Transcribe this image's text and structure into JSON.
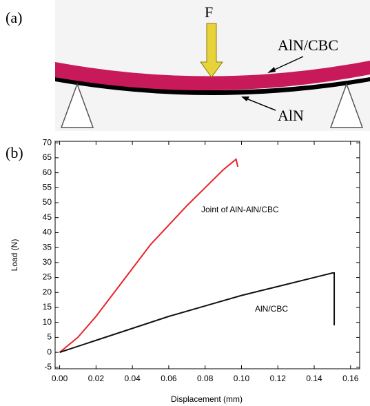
{
  "diagram": {
    "panel_label": "(a)",
    "force_label": "F",
    "top_layer_label": "AlN/CBC",
    "bottom_layer_label": "AlN"
  },
  "chart_data": {
    "type": "line",
    "panel_label": "(b)",
    "x_label": "Displacement (mm)",
    "y_label": "Load (N)",
    "xlim": [
      -0.0025,
      0.165
    ],
    "ylim": [
      -5.5,
      70.5
    ],
    "xticks": [
      {
        "value": 0,
        "label": "0.00"
      },
      {
        "value": 0.02,
        "label": "0.02"
      },
      {
        "value": 0.04,
        "label": "0.04"
      },
      {
        "value": 0.06,
        "label": "0.06"
      },
      {
        "value": 0.08,
        "label": "0.08"
      },
      {
        "value": 0.1,
        "label": "0.10"
      },
      {
        "value": 0.12,
        "label": "0.12"
      },
      {
        "value": 0.14,
        "label": "0.14"
      },
      {
        "value": 0.16,
        "label": "0.16"
      }
    ],
    "yticks": [
      -5,
      0,
      5,
      10,
      15,
      20,
      25,
      30,
      35,
      40,
      45,
      50,
      55,
      60,
      65,
      70
    ],
    "series": [
      {
        "name": "Joint of AlN-AlN/CBC",
        "color": "#e8232a",
        "x": [
          0,
          0.01,
          0.02,
          0.03,
          0.04,
          0.05,
          0.06,
          0.07,
          0.08,
          0.09,
          0.097,
          0.098
        ],
        "values": [
          0,
          5,
          12,
          20,
          28,
          36,
          42.5,
          49,
          55,
          61,
          64.5,
          62
        ]
      },
      {
        "name": "AlN/CBC",
        "color": "#111111",
        "x": [
          0,
          0.02,
          0.04,
          0.06,
          0.08,
          0.1,
          0.12,
          0.14,
          0.15,
          0.151,
          0.151
        ],
        "values": [
          0,
          4,
          8,
          12,
          15.5,
          19,
          22,
          25,
          26.5,
          26.5,
          9
        ]
      }
    ]
  }
}
